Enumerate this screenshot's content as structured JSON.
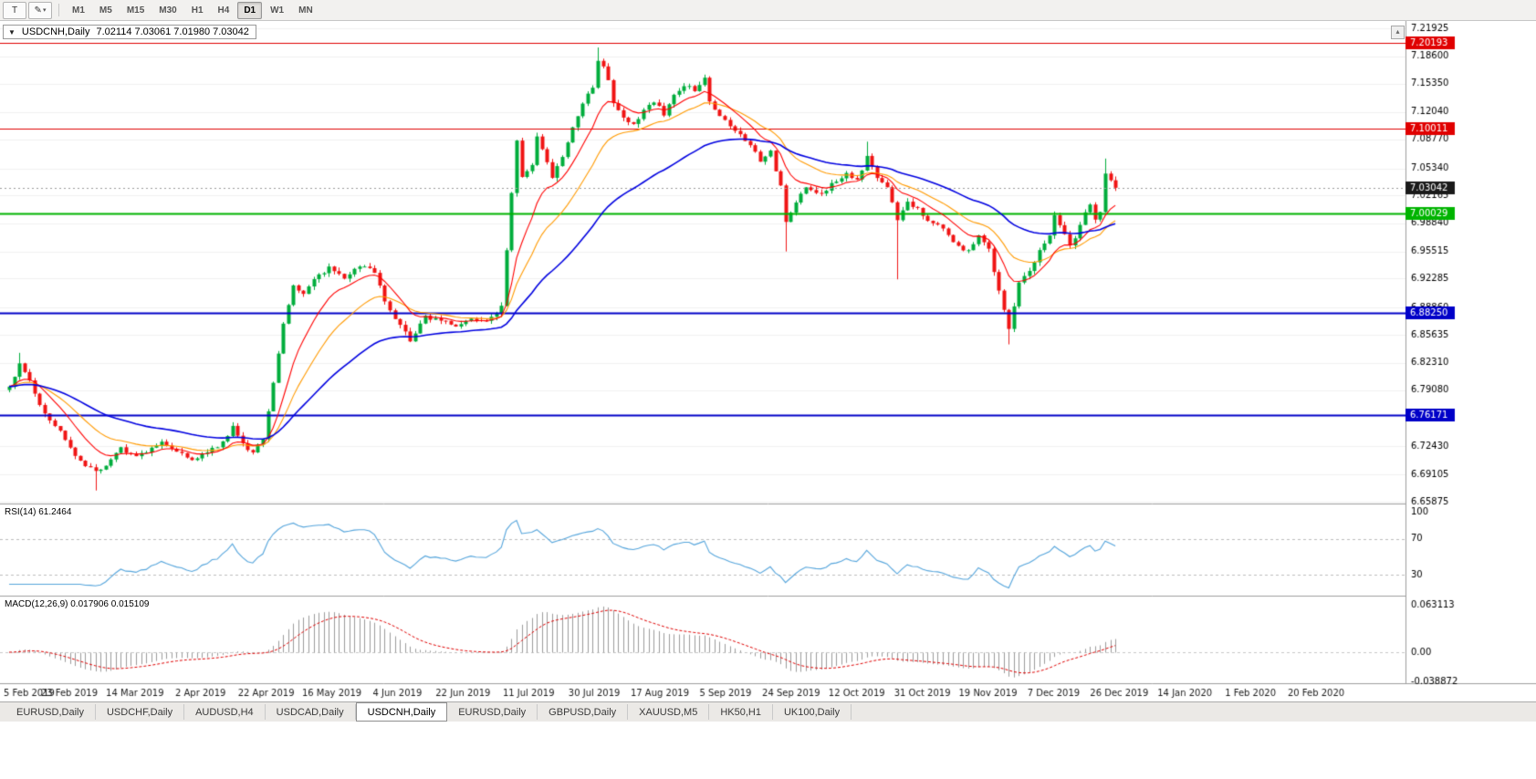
{
  "icons": {
    "collapse": "▼",
    "pen": "✎",
    "dropdown": "▾",
    "scroll_up": "▴"
  },
  "toolbar": {
    "chart_type_label": "T",
    "timeframes": [
      "M1",
      "M5",
      "M15",
      "M30",
      "H1",
      "H4",
      "D1",
      "W1",
      "MN"
    ],
    "active_timeframe": "D1"
  },
  "chart": {
    "symbol": "USDCNH,Daily",
    "ohlc_text": "7.02114 7.03061 7.01980 7.03042"
  },
  "rsi_panel": {
    "label": "RSI(14) 61.2464",
    "ticks": [
      {
        "label": "100",
        "value": 100
      },
      {
        "label": "70",
        "value": 70
      },
      {
        "label": "30",
        "value": 30
      }
    ],
    "levels": [
      70,
      30
    ]
  },
  "macd_panel": {
    "label": "MACD(12,26,9) 0.017906 0.015109",
    "ticks": [
      {
        "label": "0.063113",
        "value": 0.063113
      },
      {
        "label": "0.00",
        "value": 0
      },
      {
        "label": "-0.038872",
        "value": -0.038872
      }
    ]
  },
  "price_axis": {
    "ticks": [
      {
        "label": "7.21925",
        "value": 7.21925
      },
      {
        "label": "7.18600",
        "value": 7.186
      },
      {
        "label": "7.15350",
        "value": 7.1535
      },
      {
        "label": "7.12040",
        "value": 7.1204
      },
      {
        "label": "7.08770",
        "value": 7.0877
      },
      {
        "label": "7.05340",
        "value": 7.0534
      },
      {
        "label": "7.02165",
        "value": 7.02165
      },
      {
        "label": "6.98840",
        "value": 6.9884
      },
      {
        "label": "6.95515",
        "value": 6.95515
      },
      {
        "label": "6.92285",
        "value": 6.92285
      },
      {
        "label": "6.88860",
        "value": 6.8886
      },
      {
        "label": "6.85635",
        "value": 6.85635
      },
      {
        "label": "6.82310",
        "value": 6.8231
      },
      {
        "label": "6.79080",
        "value": 6.7908
      },
      {
        "label": "6.72430",
        "value": 6.7243
      },
      {
        "label": "6.69105",
        "value": 6.69105
      },
      {
        "label": "6.65875",
        "value": 6.65875
      }
    ],
    "boxes": [
      {
        "label": "7.20193",
        "value": 7.20193,
        "color": "#e00000"
      },
      {
        "label": "7.10011",
        "value": 7.10011,
        "color": "#e00000"
      },
      {
        "label": "7.03042",
        "value": 7.03042,
        "color": "#1a1a1a"
      },
      {
        "label": "7.00029",
        "value": 7.00029,
        "color": "#00b400"
      },
      {
        "label": "6.88250",
        "value": 6.8825,
        "color": "#0000c8"
      },
      {
        "label": "6.76171",
        "value": 6.76171,
        "color": "#0000c8"
      }
    ]
  },
  "time_axis": {
    "labels": [
      "5 Feb 2019",
      "23 Feb 2019",
      "14 Mar 2019",
      "2 Apr 2019",
      "22 Apr 2019",
      "16 May 2019",
      "4 Jun 2019",
      "22 Jun 2019",
      "11 Jul 2019",
      "30 Jul 2019",
      "17 Aug 2019",
      "5 Sep 2019",
      "24 Sep 2019",
      "12 Oct 2019",
      "31 Oct 2019",
      "19 Nov 2019",
      "7 Dec 2019",
      "26 Dec 2019",
      "14 Jan 2020",
      "1 Feb 2020",
      "20 Feb 2020"
    ]
  },
  "tabs": {
    "items": [
      "EURUSD,Daily",
      "USDCHF,Daily",
      "AUDUSD,H4",
      "USDCAD,Daily",
      "USDCNH,Daily",
      "EURUSD,Daily",
      "GBPUSD,Daily",
      "XAUUSD,M5",
      "HK50,H1",
      "UK100,Daily"
    ],
    "active_index": 4
  },
  "chart_data": {
    "type": "candlestick",
    "symbol": "USDCNH",
    "timeframe": "Daily",
    "last_price": 7.03042,
    "ohlc_current": {
      "open": 7.02114,
      "high": 7.03061,
      "low": 7.0198,
      "close": 7.03042
    },
    "price_range": [
      6.65875,
      7.21925
    ],
    "bar_count": 219,
    "close_waypoints": [
      [
        0,
        6.795
      ],
      [
        2,
        6.822
      ],
      [
        4,
        6.8
      ],
      [
        7,
        6.762
      ],
      [
        10,
        6.742
      ],
      [
        14,
        6.705
      ],
      [
        17,
        6.695
      ],
      [
        19,
        6.703
      ],
      [
        22,
        6.722
      ],
      [
        25,
        6.712
      ],
      [
        27,
        6.718
      ],
      [
        30,
        6.728
      ],
      [
        33,
        6.72
      ],
      [
        36,
        6.708
      ],
      [
        39,
        6.718
      ],
      [
        42,
        6.728
      ],
      [
        44,
        6.748
      ],
      [
        46,
        6.726
      ],
      [
        48,
        6.718
      ],
      [
        50,
        6.735
      ],
      [
        52,
        6.8
      ],
      [
        54,
        6.87
      ],
      [
        56,
        6.916
      ],
      [
        58,
        6.905
      ],
      [
        60,
        6.922
      ],
      [
        63,
        6.935
      ],
      [
        66,
        6.924
      ],
      [
        69,
        6.938
      ],
      [
        72,
        6.932
      ],
      [
        74,
        6.895
      ],
      [
        77,
        6.866
      ],
      [
        79,
        6.85
      ],
      [
        82,
        6.878
      ],
      [
        85,
        6.872
      ],
      [
        88,
        6.868
      ],
      [
        91,
        6.874
      ],
      [
        94,
        6.872
      ],
      [
        96,
        6.88
      ],
      [
        97,
        6.892
      ],
      [
        98,
        6.958
      ],
      [
        99,
        7.022
      ],
      [
        100,
        7.088
      ],
      [
        101,
        7.042
      ],
      [
        103,
        7.058
      ],
      [
        104,
        7.092
      ],
      [
        106,
        7.062
      ],
      [
        107,
        7.042
      ],
      [
        109,
        7.066
      ],
      [
        111,
        7.102
      ],
      [
        113,
        7.132
      ],
      [
        115,
        7.148
      ],
      [
        116,
        7.182
      ],
      [
        117,
        7.176
      ],
      [
        118,
        7.158
      ],
      [
        119,
        7.132
      ],
      [
        121,
        7.112
      ],
      [
        123,
        7.106
      ],
      [
        125,
        7.122
      ],
      [
        127,
        7.132
      ],
      [
        129,
        7.118
      ],
      [
        131,
        7.142
      ],
      [
        133,
        7.152
      ],
      [
        135,
        7.146
      ],
      [
        137,
        7.162
      ],
      [
        138,
        7.132
      ],
      [
        140,
        7.116
      ],
      [
        143,
        7.1
      ],
      [
        146,
        7.082
      ],
      [
        148,
        7.062
      ],
      [
        150,
        7.072
      ],
      [
        152,
        7.032
      ],
      [
        153,
        6.988
      ],
      [
        155,
        7.012
      ],
      [
        157,
        7.032
      ],
      [
        160,
        7.022
      ],
      [
        162,
        7.036
      ],
      [
        165,
        7.046
      ],
      [
        167,
        7.04
      ],
      [
        169,
        7.066
      ],
      [
        171,
        7.042
      ],
      [
        173,
        7.03
      ],
      [
        175,
        6.992
      ],
      [
        177,
        7.012
      ],
      [
        179,
        7.006
      ],
      [
        181,
        6.992
      ],
      [
        183,
        6.986
      ],
      [
        185,
        6.976
      ],
      [
        187,
        6.96
      ],
      [
        189,
        6.956
      ],
      [
        191,
        6.972
      ],
      [
        193,
        6.958
      ],
      [
        195,
        6.908
      ],
      [
        197,
        6.862
      ],
      [
        199,
        6.92
      ],
      [
        201,
        6.932
      ],
      [
        203,
        6.955
      ],
      [
        205,
        6.972
      ],
      [
        206,
        7.0
      ],
      [
        208,
        6.976
      ],
      [
        209,
        6.962
      ],
      [
        210,
        6.972
      ],
      [
        212,
        7.002
      ],
      [
        213,
        7.012
      ],
      [
        214,
        6.992
      ],
      [
        215,
        7.002
      ],
      [
        216,
        7.048
      ],
      [
        217,
        7.04
      ],
      [
        218,
        7.03042
      ]
    ],
    "wick_overrides": [
      {
        "i": 2,
        "high": 6.835
      },
      {
        "i": 17,
        "low": 6.672
      },
      {
        "i": 116,
        "high": 7.1965
      },
      {
        "i": 153,
        "low": 6.955
      },
      {
        "i": 169,
        "high": 7.085
      },
      {
        "i": 175,
        "low": 6.922
      },
      {
        "i": 197,
        "low": 6.845
      },
      {
        "i": 216,
        "high": 7.065
      }
    ],
    "horizontal_lines": [
      {
        "value": 7.20193,
        "color": "#e00000",
        "width": 1
      },
      {
        "value": 7.10011,
        "color": "#e00000",
        "width": 1
      },
      {
        "value": 7.00029,
        "color": "#00b400",
        "width": 2
      },
      {
        "value": 6.8825,
        "color": "#0000c8",
        "width": 2
      },
      {
        "value": 6.76171,
        "color": "#0000c8",
        "width": 2
      }
    ],
    "moving_averages": [
      {
        "period": 20,
        "color": "#ff9a00",
        "width": 1.1
      },
      {
        "period": 10,
        "color": "#ff0000",
        "width": 1.1
      },
      {
        "period": 45,
        "color": "#0000e0",
        "width": 1.6
      }
    ],
    "candle_colors": {
      "up": "#00ad3c",
      "down": "#f01414"
    },
    "bid_line_color": "#9a9a9a",
    "rsi": {
      "period": 14,
      "current": 61.2464,
      "color": "#55a5dc",
      "levels": [
        70,
        30
      ]
    },
    "macd": {
      "fast": 12,
      "slow": 26,
      "signal": 9,
      "current_macd": 0.017906,
      "current_signal": 0.015109,
      "histogram_color": "#9c9c9c",
      "signal_color": "#e00000",
      "axis_max": 0.063113,
      "axis_min": -0.038872
    }
  }
}
